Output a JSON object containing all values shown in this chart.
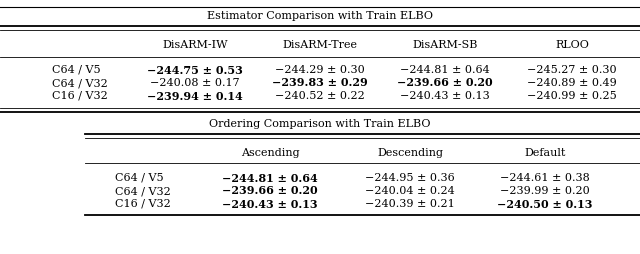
{
  "title1": "Estimator Comparison with Train ELBO",
  "title2": "Ordering Comparison with Train ELBO",
  "table1_cols": [
    "",
    "DisARM-IW",
    "DisARM-Tree",
    "DisARM-SB",
    "RLOO"
  ],
  "table1_rows": [
    [
      "C64 / V5",
      "−244.75 ± 0.53",
      "−244.29 ± 0.30",
      "−244.81 ± 0.64",
      "−245.27 ± 0.30"
    ],
    [
      "C64 / V32",
      "−240.08 ± 0.17",
      "−239.83 ± 0.29",
      "−239.66 ± 0.20",
      "−240.89 ± 0.49"
    ],
    [
      "C16 / V32",
      "−239.94 ± 0.14",
      "−240.52 ± 0.22",
      "−240.43 ± 0.13",
      "−240.99 ± 0.25"
    ]
  ],
  "table1_bold": [
    [
      0,
      1
    ],
    [
      1,
      2
    ],
    [
      1,
      3
    ],
    [
      2,
      1
    ]
  ],
  "table2_cols": [
    "",
    "Ascending",
    "Descending",
    "Default"
  ],
  "table2_rows": [
    [
      "C64 / V5",
      "−244.81 ± 0.64",
      "−244.95 ± 0.36",
      "−244.61 ± 0.38"
    ],
    [
      "C64 / V32",
      "−239.66 ± 0.20",
      "−240.04 ± 0.24",
      "−239.99 ± 0.20"
    ],
    [
      "C16 / V32",
      "−240.43 ± 0.13",
      "−240.39 ± 0.21",
      "−240.50 ± 0.13"
    ]
  ],
  "table2_bold": [
    [
      0,
      1
    ],
    [
      1,
      1
    ],
    [
      2,
      1
    ],
    [
      2,
      3
    ]
  ],
  "bg_color": "#ffffff",
  "font_size": 8.0
}
